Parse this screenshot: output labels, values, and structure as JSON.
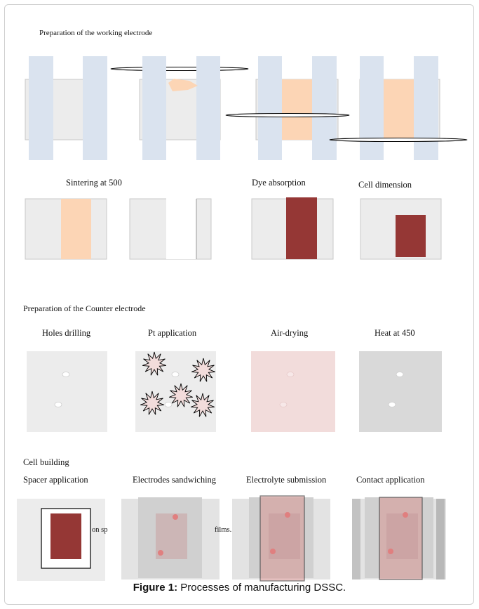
{
  "sections": {
    "working_electrode": "Preparation of the working electrode",
    "counter_electrode": "Preparation of the Counter electrode",
    "cell_building": "Cell building"
  },
  "steps": {
    "sintering": "Sintering at 500",
    "dye_absorption": "Dye absorption",
    "cell_dimension": "Cell dimension",
    "holes_drilling": "Holes drilling",
    "pt_application": "Pt application",
    "air_drying": "Air-drying",
    "heat": "Heat at 450",
    "spacer_application": "Spacer application",
    "electrodes_sandwiching": "Electrodes sandwiching",
    "electrolyte_submission": "Electrolyte submission",
    "contact_application": "Contact application"
  },
  "overlay_fragments": {
    "left": "on sp",
    "right": "films."
  },
  "caption": {
    "label": "Figure 1:",
    "text": " Processes of manufacturing DSSC."
  },
  "colors": {
    "glass": "#ececec",
    "tape": "#dae3ef",
    "tio2": "#fcd5b5",
    "dye": "#953735",
    "pt_plate": "#f2dcdb",
    "heated_plate": "#d9d9d9",
    "sandwich_plate": "#d0d0d0",
    "electrolyte": "#d99694"
  }
}
